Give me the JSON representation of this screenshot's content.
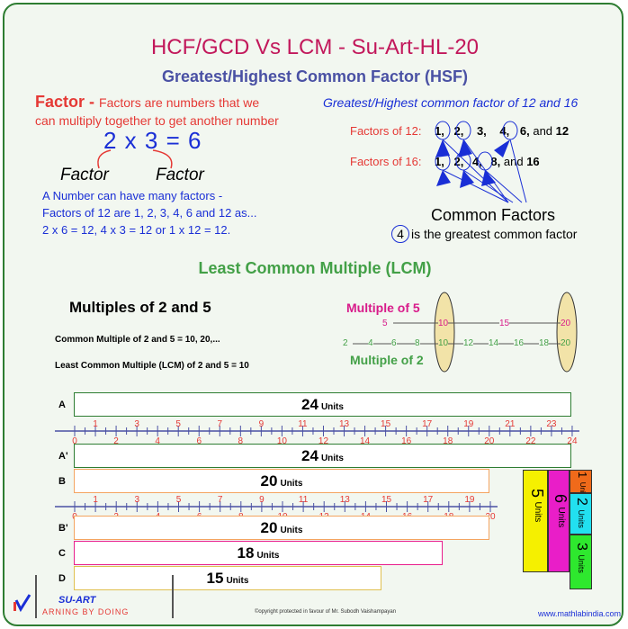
{
  "title": "HCF/GCD Vs LCM - Su-Art-HL-20",
  "hcf_heading": "Greatest/Highest Common Factor (HSF)",
  "factor": {
    "term": "Factor - ",
    "definition_line1": "Factors are numbers that we",
    "definition_line2": "can multiply together to get another number",
    "equation": "2 x 3 = 6",
    "label1": "Factor",
    "label2": "Factor",
    "note_line1": "A Number can have many factors -",
    "note_line2": "Factors of 12 are 1, 2, 3, 4, 6 and 12 as...",
    "note_line3": "2 x 6 = 12, 4 x 3 = 12 or 1 x 12 = 12."
  },
  "gcf": {
    "heading": "Greatest/Highest common factor of 12 and 16",
    "factors12_label": "Factors of 12:",
    "factors12": [
      "1,",
      "2,",
      "3,",
      "4,",
      "6,",
      "and",
      "12"
    ],
    "factors16_label": "Factors of 16:",
    "factors16": [
      "1,",
      "2,",
      "4,",
      "8,",
      "and",
      "16"
    ],
    "common_label": "Common Factors",
    "greatest_number": "4",
    "greatest_text": "is the greatest common factor"
  },
  "lcm_heading": "Least Common Multiple (LCM)",
  "multiples": {
    "heading": "Multiples of 2 and 5",
    "common_text": "Common Multiple of 2 and 5 = 10, 20,...",
    "lcm_text": "Least Common Multiple (LCM) of 2 and 5 = 10",
    "mult5_label": "Multiple of 5",
    "mult2_label": "Multiple of 2",
    "row5": [
      "5",
      "10",
      "15",
      "20"
    ],
    "row2": [
      "2",
      "4",
      "6",
      "8",
      "10",
      "12",
      "14",
      "16",
      "18",
      "20"
    ]
  },
  "bars": [
    {
      "label": "A",
      "value": "24",
      "unit": "Units",
      "color": "#2e7d32"
    },
    {
      "label": "A'",
      "value": "24",
      "unit": "Units",
      "color": "#2e7d32"
    },
    {
      "label": "B",
      "value": "20",
      "unit": "Units",
      "color": "#f4a460"
    },
    {
      "label": "B'",
      "value": "20",
      "unit": "Units",
      "color": "#f4a460"
    },
    {
      "label": "C",
      "value": "18",
      "unit": "Units",
      "color": "#e91e8c"
    },
    {
      "label": "D",
      "value": "15",
      "unit": "Units",
      "color": "#e0c050"
    }
  ],
  "ruler1": {
    "odd": [
      "1",
      "3",
      "5",
      "7",
      "9",
      "11",
      "13",
      "15",
      "17",
      "19",
      "21",
      "23"
    ],
    "even": [
      "0",
      "2",
      "4",
      "6",
      "8",
      "10",
      "12",
      "14",
      "16",
      "18",
      "20",
      "22",
      "24"
    ]
  },
  "ruler2": {
    "odd": [
      "1",
      "3",
      "5",
      "7",
      "9",
      "11",
      "13",
      "15",
      "17",
      "19"
    ],
    "even": [
      "0",
      "2",
      "4",
      "6",
      "8",
      "10",
      "12",
      "14",
      "16",
      "18",
      "20"
    ]
  },
  "unit_boxes": [
    {
      "value": "5",
      "unit": "Units",
      "color": "#f5f000"
    },
    {
      "value": "6",
      "unit": "Units",
      "color": "#e91ec8"
    },
    {
      "value": "1",
      "unit": "Unit",
      "color": "#f06a1a"
    },
    {
      "value": "2",
      "unit": "Units",
      "color": "#22e0f0"
    },
    {
      "value": "3",
      "unit": "Units",
      "color": "#2ee82e"
    }
  ],
  "footer": {
    "brand": "SU-ART",
    "tagline": "ARNING BY DOING",
    "copyright": "©opyright protected in favour of Mr. Subodh Vaishampayan",
    "website": "www.mathlabindia.com"
  }
}
